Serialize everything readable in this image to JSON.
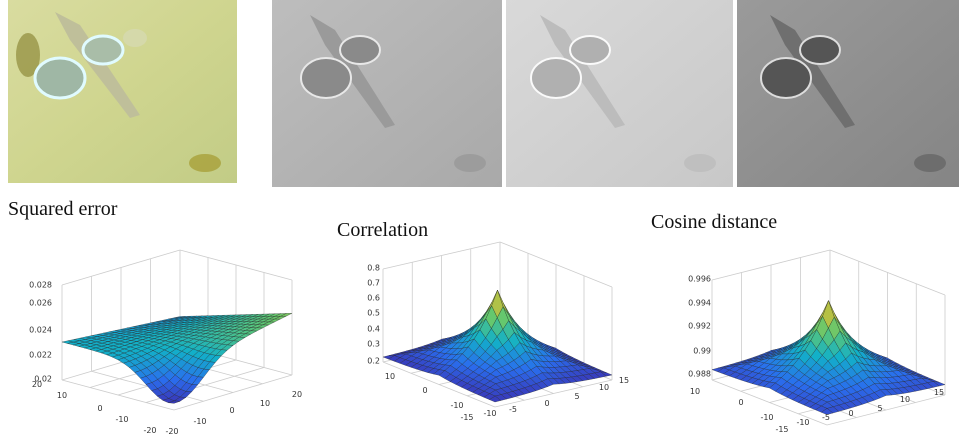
{
  "panels": [
    {
      "title": "Squared error",
      "z_ticks": [
        "0.028",
        "0.026",
        "0.024",
        "0.022",
        "0.02"
      ],
      "left_ticks": [
        "20",
        "10",
        "0",
        "-10",
        "-20"
      ],
      "right_ticks": [
        "-20",
        "-10",
        "0",
        "10",
        "20"
      ]
    },
    {
      "title": "Correlation",
      "z_ticks": [
        "0.8",
        "0.7",
        "0.6",
        "0.5",
        "0.4",
        "0.3",
        "0.2"
      ],
      "left_ticks": [
        "10",
        "0",
        "-10"
      ],
      "right_ticks": [
        "-15",
        "-10",
        "-5",
        "0",
        "5",
        "10",
        "15"
      ]
    },
    {
      "title": "Cosine distance",
      "z_ticks": [
        "0.996",
        "0.994",
        "0.992",
        "0.99",
        "0.988"
      ],
      "left_ticks": [
        "10",
        "0",
        "-10"
      ],
      "right_ticks": [
        "-15",
        "-10",
        "-5",
        "0",
        "5",
        "10",
        "15"
      ]
    }
  ]
}
